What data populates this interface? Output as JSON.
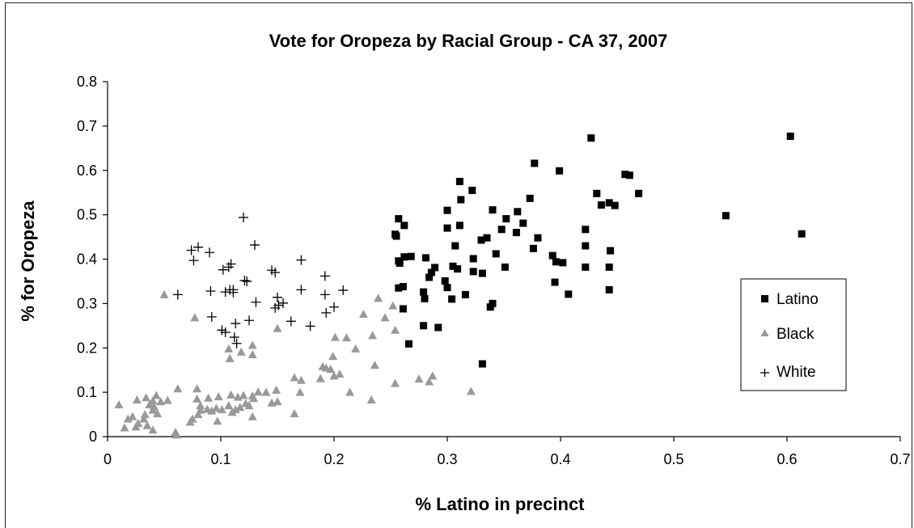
{
  "chart_data": {
    "type": "scatter",
    "title": "Vote for Oropeza by Racial Group - CA 37, 2007",
    "xlabel": "% Latino in precinct",
    "ylabel": "% for Oropeza",
    "xlim": [
      0,
      0.7
    ],
    "ylim": [
      0,
      0.8
    ],
    "xticks": [
      "0",
      "0.1",
      "0.2",
      "0.3",
      "0.4",
      "0.5",
      "0.6",
      "0.7"
    ],
    "yticks": [
      "0",
      "0.1",
      "0.2",
      "0.3",
      "0.4",
      "0.5",
      "0.6",
      "0.7",
      "0.8"
    ],
    "xtick_values": [
      0,
      0.1,
      0.2,
      0.3,
      0.4,
      0.5,
      0.6,
      0.7
    ],
    "ytick_values": [
      0,
      0.1,
      0.2,
      0.3,
      0.4,
      0.5,
      0.6,
      0.7,
      0.8
    ],
    "grid": false,
    "legend_position": "right",
    "series": [
      {
        "name": "Latino",
        "marker": "square",
        "color": "#000000",
        "points": [
          [
            0.427,
            0.673
          ],
          [
            0.603,
            0.677
          ],
          [
            0.377,
            0.616
          ],
          [
            0.399,
            0.599
          ],
          [
            0.457,
            0.591
          ],
          [
            0.461,
            0.589
          ],
          [
            0.311,
            0.575
          ],
          [
            0.322,
            0.555
          ],
          [
            0.432,
            0.548
          ],
          [
            0.469,
            0.548
          ],
          [
            0.312,
            0.534
          ],
          [
            0.373,
            0.537
          ],
          [
            0.443,
            0.527
          ],
          [
            0.436,
            0.522
          ],
          [
            0.448,
            0.521
          ],
          [
            0.3,
            0.51
          ],
          [
            0.34,
            0.511
          ],
          [
            0.362,
            0.507
          ],
          [
            0.257,
            0.491
          ],
          [
            0.352,
            0.491
          ],
          [
            0.546,
            0.498
          ],
          [
            0.367,
            0.481
          ],
          [
            0.262,
            0.476
          ],
          [
            0.311,
            0.476
          ],
          [
            0.3,
            0.47
          ],
          [
            0.348,
            0.467
          ],
          [
            0.422,
            0.467
          ],
          [
            0.361,
            0.46
          ],
          [
            0.254,
            0.456
          ],
          [
            0.255,
            0.452
          ],
          [
            0.613,
            0.457
          ],
          [
            0.335,
            0.448
          ],
          [
            0.38,
            0.448
          ],
          [
            0.33,
            0.443
          ],
          [
            0.307,
            0.43
          ],
          [
            0.376,
            0.424
          ],
          [
            0.422,
            0.43
          ],
          [
            0.343,
            0.412
          ],
          [
            0.444,
            0.419
          ],
          [
            0.393,
            0.408
          ],
          [
            0.262,
            0.405
          ],
          [
            0.268,
            0.406
          ],
          [
            0.281,
            0.403
          ],
          [
            0.257,
            0.396
          ],
          [
            0.323,
            0.401
          ],
          [
            0.258,
            0.391
          ],
          [
            0.396,
            0.394
          ],
          [
            0.402,
            0.392
          ],
          [
            0.289,
            0.381
          ],
          [
            0.305,
            0.384
          ],
          [
            0.351,
            0.382
          ],
          [
            0.309,
            0.378
          ],
          [
            0.422,
            0.382
          ],
          [
            0.443,
            0.382
          ],
          [
            0.286,
            0.37
          ],
          [
            0.323,
            0.372
          ],
          [
            0.331,
            0.368
          ],
          [
            0.284,
            0.359
          ],
          [
            0.298,
            0.351
          ],
          [
            0.395,
            0.348
          ],
          [
            0.257,
            0.335
          ],
          [
            0.261,
            0.338
          ],
          [
            0.3,
            0.336
          ],
          [
            0.279,
            0.326
          ],
          [
            0.316,
            0.32
          ],
          [
            0.407,
            0.321
          ],
          [
            0.443,
            0.331
          ],
          [
            0.28,
            0.311
          ],
          [
            0.304,
            0.31
          ],
          [
            0.34,
            0.3
          ],
          [
            0.338,
            0.292
          ],
          [
            0.261,
            0.288
          ],
          [
            0.279,
            0.25
          ],
          [
            0.292,
            0.246
          ],
          [
            0.266,
            0.209
          ],
          [
            0.331,
            0.164
          ]
        ]
      },
      {
        "name": "Black",
        "marker": "triangle",
        "color": "#999999",
        "points": [
          [
            0.05,
            0.32
          ],
          [
            0.077,
            0.268
          ],
          [
            0.128,
            0.206
          ],
          [
            0.107,
            0.198
          ],
          [
            0.118,
            0.191
          ],
          [
            0.128,
            0.185
          ],
          [
            0.108,
            0.176
          ],
          [
            0.239,
            0.312
          ],
          [
            0.252,
            0.295
          ],
          [
            0.226,
            0.276
          ],
          [
            0.245,
            0.268
          ],
          [
            0.201,
            0.224
          ],
          [
            0.234,
            0.228
          ],
          [
            0.15,
            0.244
          ],
          [
            0.254,
            0.24
          ],
          [
            0.211,
            0.223
          ],
          [
            0.199,
            0.181
          ],
          [
            0.236,
            0.161
          ],
          [
            0.19,
            0.158
          ],
          [
            0.197,
            0.152
          ],
          [
            0.193,
            0.155
          ],
          [
            0.219,
            0.198
          ],
          [
            0.2,
            0.137
          ],
          [
            0.205,
            0.141
          ],
          [
            0.188,
            0.131
          ],
          [
            0.165,
            0.133
          ],
          [
            0.171,
            0.127
          ],
          [
            0.254,
            0.12
          ],
          [
            0.287,
            0.137
          ],
          [
            0.275,
            0.13
          ],
          [
            0.284,
            0.124
          ],
          [
            0.321,
            0.102
          ],
          [
            0.233,
            0.083
          ],
          [
            0.214,
            0.1
          ],
          [
            0.17,
            0.1
          ],
          [
            0.149,
            0.105
          ],
          [
            0.14,
            0.1
          ],
          [
            0.133,
            0.101
          ],
          [
            0.128,
            0.092
          ],
          [
            0.12,
            0.093
          ],
          [
            0.115,
            0.089
          ],
          [
            0.109,
            0.094
          ],
          [
            0.129,
            0.086
          ],
          [
            0.079,
            0.108
          ],
          [
            0.062,
            0.108
          ],
          [
            0.043,
            0.093
          ],
          [
            0.034,
            0.088
          ],
          [
            0.026,
            0.083
          ],
          [
            0.04,
            0.081
          ],
          [
            0.047,
            0.079
          ],
          [
            0.053,
            0.082
          ],
          [
            0.018,
            0.04
          ],
          [
            0.01,
            0.072
          ],
          [
            0.079,
            0.085
          ],
          [
            0.098,
            0.09
          ],
          [
            0.089,
            0.087
          ],
          [
            0.088,
            0.062
          ],
          [
            0.082,
            0.06
          ],
          [
            0.092,
            0.058
          ],
          [
            0.101,
            0.061
          ],
          [
            0.096,
            0.064
          ],
          [
            0.107,
            0.07
          ],
          [
            0.113,
            0.061
          ],
          [
            0.117,
            0.066
          ],
          [
            0.122,
            0.075
          ],
          [
            0.125,
            0.07
          ],
          [
            0.145,
            0.076
          ],
          [
            0.15,
            0.079
          ],
          [
            0.033,
            0.05
          ],
          [
            0.044,
            0.052
          ],
          [
            0.04,
            0.06
          ],
          [
            0.041,
            0.068
          ],
          [
            0.037,
            0.072
          ],
          [
            0.015,
            0.02
          ],
          [
            0.025,
            0.022
          ],
          [
            0.027,
            0.03
          ],
          [
            0.035,
            0.025
          ],
          [
            0.04,
            0.015
          ],
          [
            0.032,
            0.04
          ],
          [
            0.022,
            0.045
          ],
          [
            0.06,
            0.01
          ],
          [
            0.061,
            0.004
          ],
          [
            0.075,
            0.04
          ],
          [
            0.073,
            0.033
          ],
          [
            0.128,
            0.045
          ],
          [
            0.11,
            0.055
          ],
          [
            0.165,
            0.052
          ],
          [
            0.08,
            0.05
          ],
          [
            0.082,
            0.07
          ],
          [
            0.097,
            0.035
          ]
        ]
      },
      {
        "name": "White",
        "marker": "plus",
        "color": "#000000",
        "points": [
          [
            0.12,
            0.494
          ],
          [
            0.13,
            0.432
          ],
          [
            0.08,
            0.427
          ],
          [
            0.074,
            0.42
          ],
          [
            0.09,
            0.415
          ],
          [
            0.076,
            0.397
          ],
          [
            0.171,
            0.398
          ],
          [
            0.109,
            0.389
          ],
          [
            0.107,
            0.382
          ],
          [
            0.102,
            0.376
          ],
          [
            0.145,
            0.375
          ],
          [
            0.148,
            0.37
          ],
          [
            0.192,
            0.362
          ],
          [
            0.121,
            0.352
          ],
          [
            0.123,
            0.35
          ],
          [
            0.108,
            0.331
          ],
          [
            0.111,
            0.331
          ],
          [
            0.104,
            0.326
          ],
          [
            0.111,
            0.325
          ],
          [
            0.091,
            0.328
          ],
          [
            0.171,
            0.331
          ],
          [
            0.208,
            0.33
          ],
          [
            0.062,
            0.32
          ],
          [
            0.192,
            0.32
          ],
          [
            0.15,
            0.314
          ],
          [
            0.131,
            0.303
          ],
          [
            0.155,
            0.301
          ],
          [
            0.151,
            0.296
          ],
          [
            0.148,
            0.29
          ],
          [
            0.2,
            0.292
          ],
          [
            0.193,
            0.279
          ],
          [
            0.092,
            0.27
          ],
          [
            0.125,
            0.262
          ],
          [
            0.162,
            0.26
          ],
          [
            0.113,
            0.255
          ],
          [
            0.179,
            0.249
          ],
          [
            0.101,
            0.24
          ],
          [
            0.104,
            0.235
          ],
          [
            0.112,
            0.224
          ],
          [
            0.114,
            0.21
          ]
        ]
      }
    ]
  },
  "legend": {
    "items": [
      {
        "label": "Latino"
      },
      {
        "label": "Black"
      },
      {
        "label": "White"
      }
    ]
  }
}
